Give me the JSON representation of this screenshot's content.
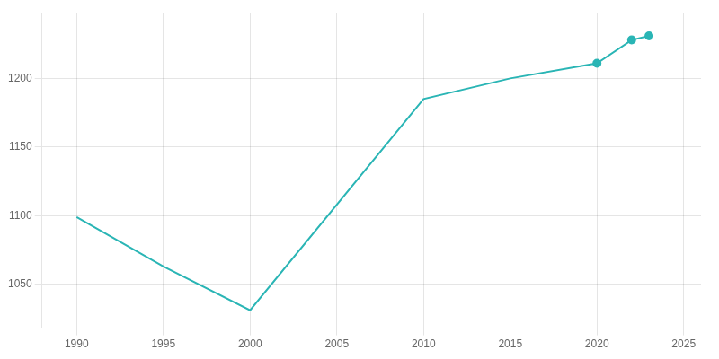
{
  "chart_data": {
    "type": "line",
    "x": [
      1990,
      1995,
      2000,
      2010,
      2015,
      2020,
      2022,
      2023
    ],
    "series": [
      {
        "type": "line",
        "color": "#2ab5b5",
        "marker": "none",
        "values": [
          1099,
          1063,
          1031,
          1185,
          1200,
          1211,
          1228,
          1231
        ]
      },
      {
        "type": "scatter",
        "color": "#2ab5b5",
        "marker": "circle",
        "values": [
          null,
          null,
          null,
          null,
          null,
          1211,
          1228,
          1231
        ]
      }
    ],
    "xlim": [
      1988,
      2026
    ],
    "ylim": [
      1018,
      1248
    ],
    "xticks": [
      1990,
      1995,
      2000,
      2005,
      2010,
      2015,
      2020,
      2025
    ],
    "yticks": [
      1050,
      1100,
      1150,
      1200
    ],
    "grid": true
  }
}
